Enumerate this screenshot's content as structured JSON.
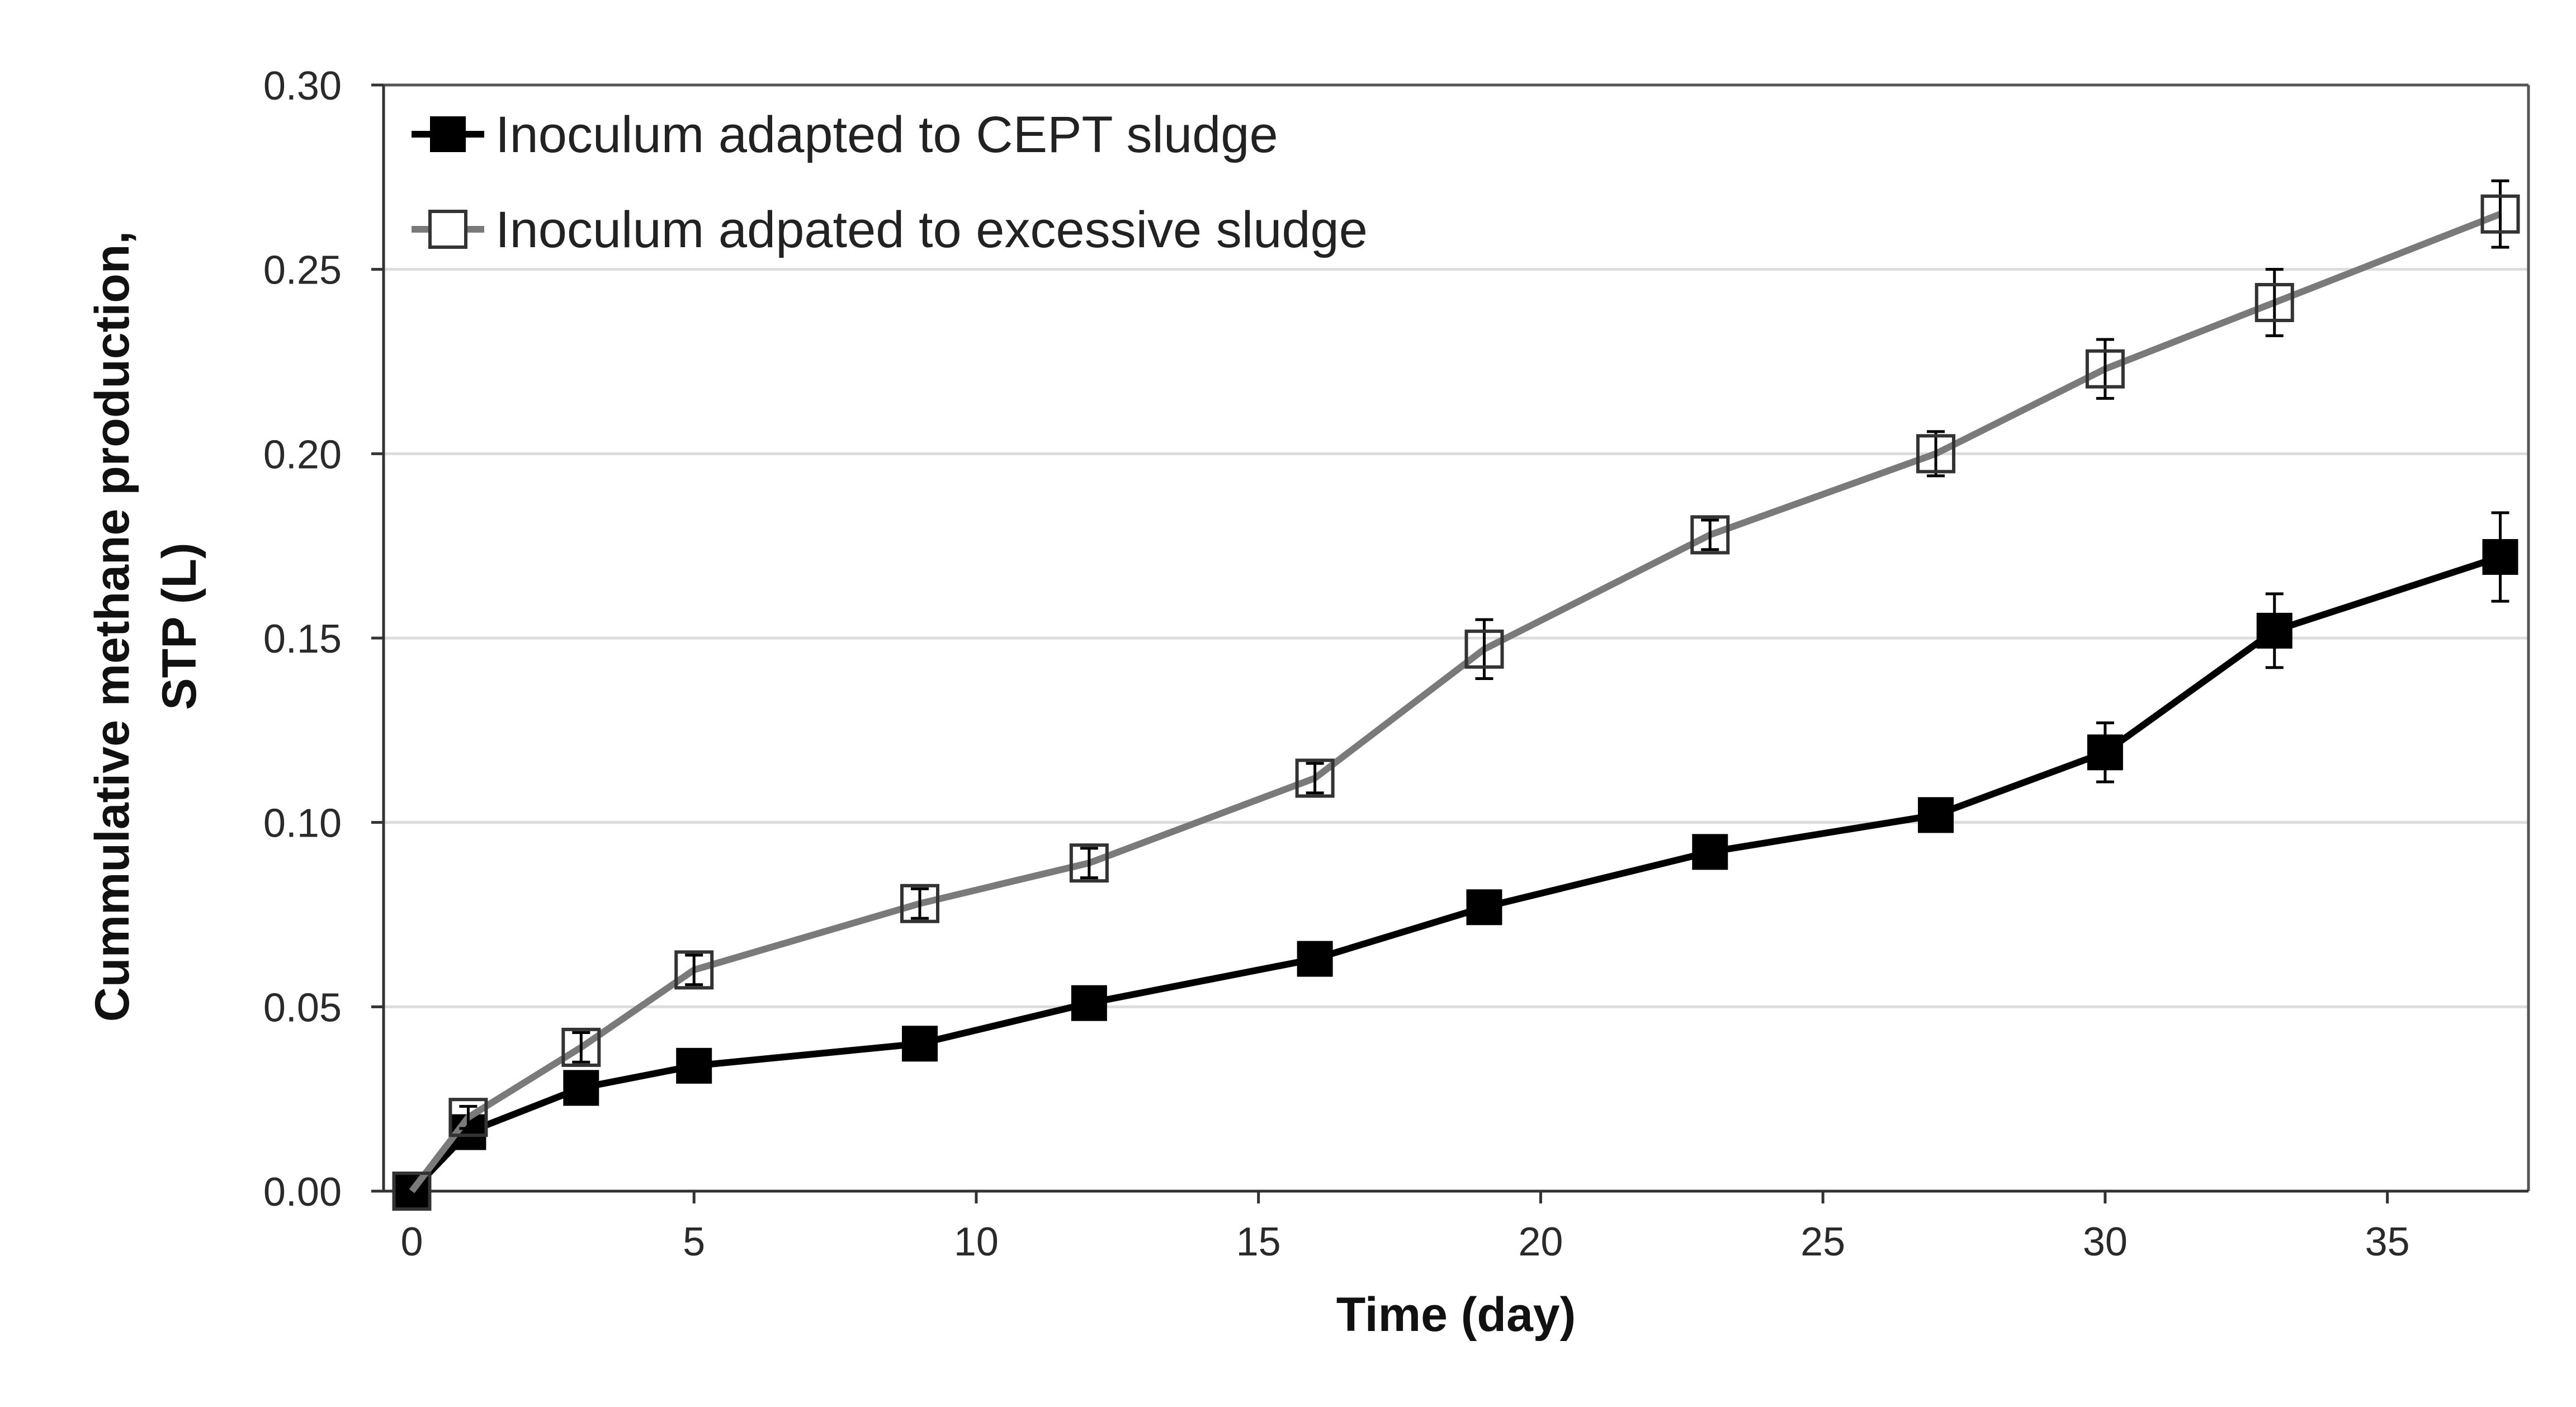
{
  "chart_data": {
    "type": "line",
    "title": "",
    "xlabel": "Time (day)",
    "ylabel_lines": [
      "Cummulative methane production,",
      "STP (L)"
    ],
    "xlim": [
      -0.5,
      37.5
    ],
    "ylim": [
      0,
      0.3
    ],
    "xticks": [
      0,
      5,
      10,
      15,
      20,
      25,
      30,
      35
    ],
    "yticks": [
      0.0,
      0.05,
      0.1,
      0.15,
      0.2,
      0.25,
      0.3
    ],
    "ytick_labels": [
      "0.00",
      "0.05",
      "0.10",
      "0.15",
      "0.20",
      "0.25",
      "0.30"
    ],
    "grid": "horizontal",
    "legend_position": "top-left",
    "series": [
      {
        "name": "Inoculum adapted to CEPT sludge",
        "color": "#000000",
        "marker": "filled-square",
        "x": [
          0,
          1,
          3,
          5,
          9,
          12,
          16,
          19,
          23,
          27,
          30,
          33,
          37
        ],
        "y": [
          0.0,
          0.016,
          0.028,
          0.034,
          0.04,
          0.051,
          0.063,
          0.077,
          0.092,
          0.102,
          0.119,
          0.152,
          0.172
        ],
        "error": [
          0.0,
          0.002,
          0.002,
          0.002,
          0.002,
          0.002,
          0.002,
          0.002,
          0.002,
          0.002,
          0.008,
          0.01,
          0.012
        ]
      },
      {
        "name": "Inoculum adpated to excessive sludge",
        "color": "#7a7a7a",
        "marker": "open-square",
        "x": [
          0,
          1,
          3,
          5,
          9,
          12,
          16,
          19,
          23,
          27,
          30,
          33,
          37
        ],
        "y": [
          0.0,
          0.02,
          0.039,
          0.06,
          0.078,
          0.089,
          0.112,
          0.147,
          0.178,
          0.2,
          0.223,
          0.241,
          0.265
        ],
        "error": [
          0.0,
          0.003,
          0.004,
          0.004,
          0.004,
          0.004,
          0.004,
          0.008,
          0.004,
          0.006,
          0.008,
          0.009,
          0.009
        ]
      }
    ]
  }
}
